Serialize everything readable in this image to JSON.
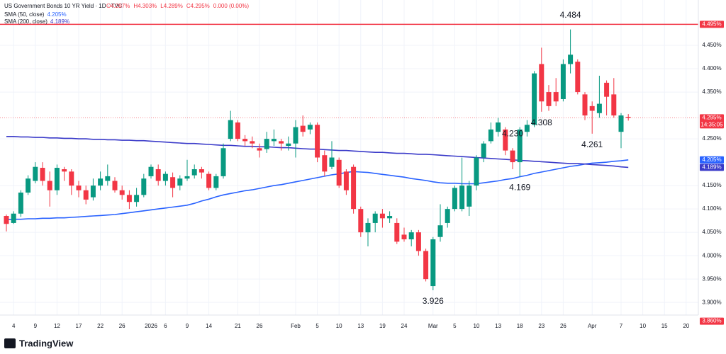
{
  "chart_data": {
    "type": "candlestick",
    "title": "US Government Bonds 10 YR Yield · 1D · TVC",
    "ohlc_legend": [
      "O4.297%",
      "H4.303%",
      "L4.289%",
      "C4.295%",
      "0.000 (0.00%)"
    ],
    "brand": "TradingView",
    "up_color": "#089981",
    "down_color": "#f23645",
    "ylim": [
      3.873,
      4.547
    ],
    "yticks": [
      {
        "value": 4.45,
        "label": "4.450%"
      },
      {
        "value": 4.4,
        "label": "4.400%"
      },
      {
        "value": 4.35,
        "label": "4.350%"
      },
      {
        "value": 4.25,
        "label": "4.250%"
      },
      {
        "value": 4.15,
        "label": "4.150%"
      },
      {
        "value": 4.1,
        "label": "4.100%"
      },
      {
        "value": 4.05,
        "label": "4.050%"
      },
      {
        "value": 4.0,
        "label": "4.000%"
      },
      {
        "value": 3.95,
        "label": "3.950%"
      },
      {
        "value": 3.9,
        "label": "3.900%"
      }
    ],
    "grid": true,
    "categories": [
      null,
      "4",
      null,
      null,
      "9",
      null,
      null,
      "12",
      null,
      null,
      "17",
      null,
      null,
      "22",
      null,
      null,
      "26",
      null,
      null,
      null,
      "2026",
      null,
      "6",
      null,
      null,
      "9",
      null,
      null,
      "14",
      null,
      null,
      null,
      "21",
      null,
      null,
      "26",
      null,
      null,
      null,
      null,
      "Feb",
      null,
      null,
      "5",
      null,
      null,
      "10",
      null,
      null,
      "13",
      null,
      null,
      "19",
      null,
      null,
      "24",
      null,
      null,
      null,
      "Mar",
      null,
      null,
      "5",
      null,
      null,
      "10",
      null,
      null,
      "13",
      null,
      null,
      "18",
      null,
      null,
      "23",
      null,
      null,
      "26",
      null,
      null,
      null,
      "Apr",
      null,
      null,
      null,
      "7",
      null,
      null,
      "10",
      null,
      null,
      "15",
      null,
      null,
      "20"
    ],
    "open": [
      4.085,
      4.07,
      4.09,
      4.135,
      4.16,
      4.188,
      4.16,
      4.14,
      4.185,
      4.18,
      4.15,
      4.14,
      4.125,
      4.15,
      4.16,
      4.16,
      4.14,
      4.13,
      4.115,
      4.13,
      4.17,
      4.185,
      4.16,
      4.168,
      4.15,
      4.165,
      4.172,
      4.185,
      4.175,
      4.145,
      4.17,
      4.25,
      4.285,
      4.25,
      4.245,
      4.23,
      4.228,
      4.245,
      4.245,
      4.235,
      4.24,
      4.278,
      4.27,
      4.28,
      4.215,
      4.19,
      4.205,
      4.18,
      4.19,
      4.1,
      4.05,
      4.07,
      4.09,
      4.08,
      4.07,
      4.045,
      4.035,
      4.05,
      4.01,
      3.935,
      4.04,
      4.07,
      4.1,
      4.1,
      4.105,
      4.15,
      4.21,
      4.245,
      4.265,
      4.27,
      4.225,
      4.2,
      4.265,
      4.28,
      4.41,
      4.35,
      4.35,
      4.335,
      4.41,
      4.415,
      4.345,
      4.32,
      4.305,
      4.37,
      4.345,
      4.265,
      4.297,
      null,
      null,
      null,
      null,
      null,
      null,
      null,
      null
    ],
    "high": [
      4.088,
      4.095,
      4.14,
      4.172,
      4.2,
      4.2,
      4.18,
      4.195,
      4.19,
      4.185,
      4.16,
      4.15,
      4.165,
      4.18,
      4.195,
      4.168,
      4.15,
      4.14,
      4.145,
      4.175,
      4.195,
      4.195,
      4.18,
      4.178,
      4.172,
      4.205,
      4.195,
      4.19,
      4.18,
      4.175,
      4.24,
      4.31,
      4.29,
      4.258,
      4.255,
      4.24,
      4.265,
      4.27,
      4.25,
      4.255,
      4.29,
      4.3,
      4.285,
      4.285,
      4.225,
      4.245,
      4.21,
      4.185,
      4.195,
      4.105,
      4.08,
      4.095,
      4.1,
      4.095,
      4.08,
      4.06,
      4.055,
      4.055,
      4.015,
      4.04,
      4.11,
      4.105,
      4.15,
      4.21,
      4.16,
      4.215,
      4.245,
      4.285,
      4.295,
      4.275,
      4.23,
      4.275,
      4.29,
      4.395,
      4.445,
      4.365,
      4.38,
      4.42,
      4.484,
      4.42,
      4.35,
      4.33,
      4.385,
      4.375,
      4.38,
      4.305,
      4.303,
      null,
      null,
      null,
      null,
      null,
      null,
      null,
      null
    ],
    "low": [
      4.052,
      4.068,
      4.083,
      4.13,
      4.155,
      4.15,
      4.105,
      4.13,
      4.16,
      4.13,
      4.125,
      4.11,
      4.118,
      4.14,
      4.15,
      4.135,
      4.12,
      4.1,
      4.105,
      4.125,
      4.165,
      4.15,
      4.15,
      4.125,
      4.14,
      4.16,
      4.165,
      4.165,
      4.14,
      4.14,
      4.165,
      4.245,
      4.245,
      4.235,
      4.23,
      4.21,
      4.22,
      4.235,
      4.225,
      4.225,
      4.21,
      4.255,
      4.26,
      4.2,
      4.17,
      4.185,
      4.145,
      4.13,
      4.09,
      4.04,
      4.02,
      4.05,
      4.06,
      4.07,
      4.025,
      4.03,
      4.02,
      4.0,
      3.945,
      3.926,
      4.03,
      4.06,
      4.095,
      4.095,
      4.085,
      4.14,
      4.2,
      4.24,
      4.255,
      4.215,
      4.185,
      4.169,
      4.255,
      4.275,
      4.308,
      4.31,
      4.32,
      4.33,
      4.39,
      4.345,
      4.29,
      4.261,
      4.295,
      4.3,
      4.295,
      4.23,
      4.289,
      null,
      null,
      null,
      null,
      null,
      null,
      null,
      null
    ],
    "close": [
      4.068,
      4.09,
      4.135,
      4.165,
      4.19,
      4.16,
      4.14,
      4.188,
      4.18,
      4.15,
      4.14,
      4.12,
      4.15,
      4.165,
      4.17,
      4.14,
      4.13,
      4.115,
      4.13,
      4.165,
      4.19,
      4.16,
      4.175,
      4.145,
      4.165,
      4.17,
      4.185,
      4.178,
      4.145,
      4.17,
      4.23,
      4.29,
      4.25,
      4.245,
      4.24,
      4.225,
      4.25,
      4.25,
      4.24,
      4.24,
      4.275,
      4.265,
      4.28,
      4.21,
      4.18,
      4.21,
      4.15,
      4.14,
      4.1,
      4.05,
      4.07,
      4.09,
      4.08,
      4.085,
      4.03,
      4.035,
      4.05,
      4.01,
      3.95,
      4.035,
      4.065,
      4.1,
      4.145,
      4.15,
      4.15,
      4.21,
      4.24,
      4.27,
      4.285,
      4.225,
      4.2,
      4.27,
      4.28,
      4.39,
      4.33,
      4.32,
      4.33,
      4.41,
      4.43,
      4.35,
      4.3,
      4.31,
      4.325,
      4.34,
      4.3,
      4.3,
      4.295,
      null,
      null,
      null,
      null,
      null,
      null,
      null,
      null
    ],
    "series": [
      {
        "name": "SMA (50, close)",
        "color": "#2962ff",
        "last_label": "4.205%",
        "values": [
          4.077,
          4.078,
          4.078,
          4.079,
          4.079,
          4.08,
          4.08,
          4.081,
          4.081,
          4.082,
          4.083,
          4.084,
          4.085,
          4.086,
          4.087,
          4.088,
          4.09,
          4.092,
          4.094,
          4.096,
          4.098,
          4.1,
          4.102,
          4.104,
          4.106,
          4.108,
          4.112,
          4.117,
          4.121,
          4.126,
          4.13,
          4.133,
          4.136,
          4.139,
          4.141,
          4.144,
          4.147,
          4.15,
          4.152,
          4.155,
          4.158,
          4.161,
          4.164,
          4.167,
          4.17,
          4.173,
          4.175,
          4.178,
          4.18,
          4.179,
          4.178,
          4.176,
          4.174,
          4.172,
          4.17,
          4.168,
          4.165,
          4.163,
          4.161,
          4.158,
          4.156,
          4.155,
          4.155,
          4.154,
          4.154,
          4.154,
          4.156,
          4.158,
          4.16,
          4.163,
          4.165,
          4.169,
          4.172,
          4.176,
          4.179,
          4.182,
          4.185,
          4.188,
          4.191,
          4.193,
          4.196,
          4.198,
          4.199,
          4.2,
          4.202,
          4.203,
          4.205,
          null,
          null,
          null,
          null,
          null,
          null,
          null,
          null
        ]
      },
      {
        "name": "SMA (200, close)",
        "color": "#3b3bc9",
        "last_label": "4.189%",
        "values": [
          4.255,
          4.255,
          4.254,
          4.254,
          4.253,
          4.253,
          4.252,
          4.252,
          4.251,
          4.251,
          4.25,
          4.25,
          4.249,
          4.249,
          4.248,
          4.248,
          4.247,
          4.247,
          4.246,
          4.246,
          4.245,
          4.244,
          4.243,
          4.242,
          4.241,
          4.24,
          4.24,
          4.239,
          4.238,
          4.237,
          4.236,
          4.236,
          4.235,
          4.234,
          4.234,
          4.233,
          4.233,
          4.232,
          4.231,
          4.231,
          4.23,
          4.229,
          4.228,
          4.228,
          4.227,
          4.226,
          4.225,
          4.225,
          4.224,
          4.223,
          4.222,
          4.221,
          4.221,
          4.22,
          4.219,
          4.219,
          4.218,
          4.217,
          4.217,
          4.216,
          4.215,
          4.214,
          4.213,
          4.212,
          4.211,
          4.21,
          4.209,
          4.208,
          4.207,
          4.206,
          4.205,
          4.204,
          4.203,
          4.202,
          4.201,
          4.2,
          4.199,
          4.198,
          4.197,
          4.197,
          4.196,
          4.195,
          4.194,
          4.193,
          4.192,
          4.19,
          4.189,
          null,
          null,
          null,
          null,
          null,
          null,
          null,
          null
        ]
      }
    ],
    "annotations": [
      4.484,
      4.308,
      4.261,
      {
        "value": 4.23,
        "label": "4.230"
      },
      4.169,
      3.926
    ],
    "price_labels": [
      {
        "value": 4.495,
        "label": "4.495%",
        "color": "#f23645",
        "line": "solid"
      },
      {
        "value": 4.295,
        "label": "4.295%",
        "sub": "14:35:05",
        "color": "#f23645",
        "line": "dotted"
      },
      {
        "value": 4.205,
        "label": "4.205%",
        "color": "#2962ff"
      },
      {
        "value": 4.189,
        "label": "4.189%",
        "color": "#3b3bc9"
      },
      {
        "value": 3.86,
        "label": "3.860%",
        "color": "#f23645"
      }
    ]
  }
}
